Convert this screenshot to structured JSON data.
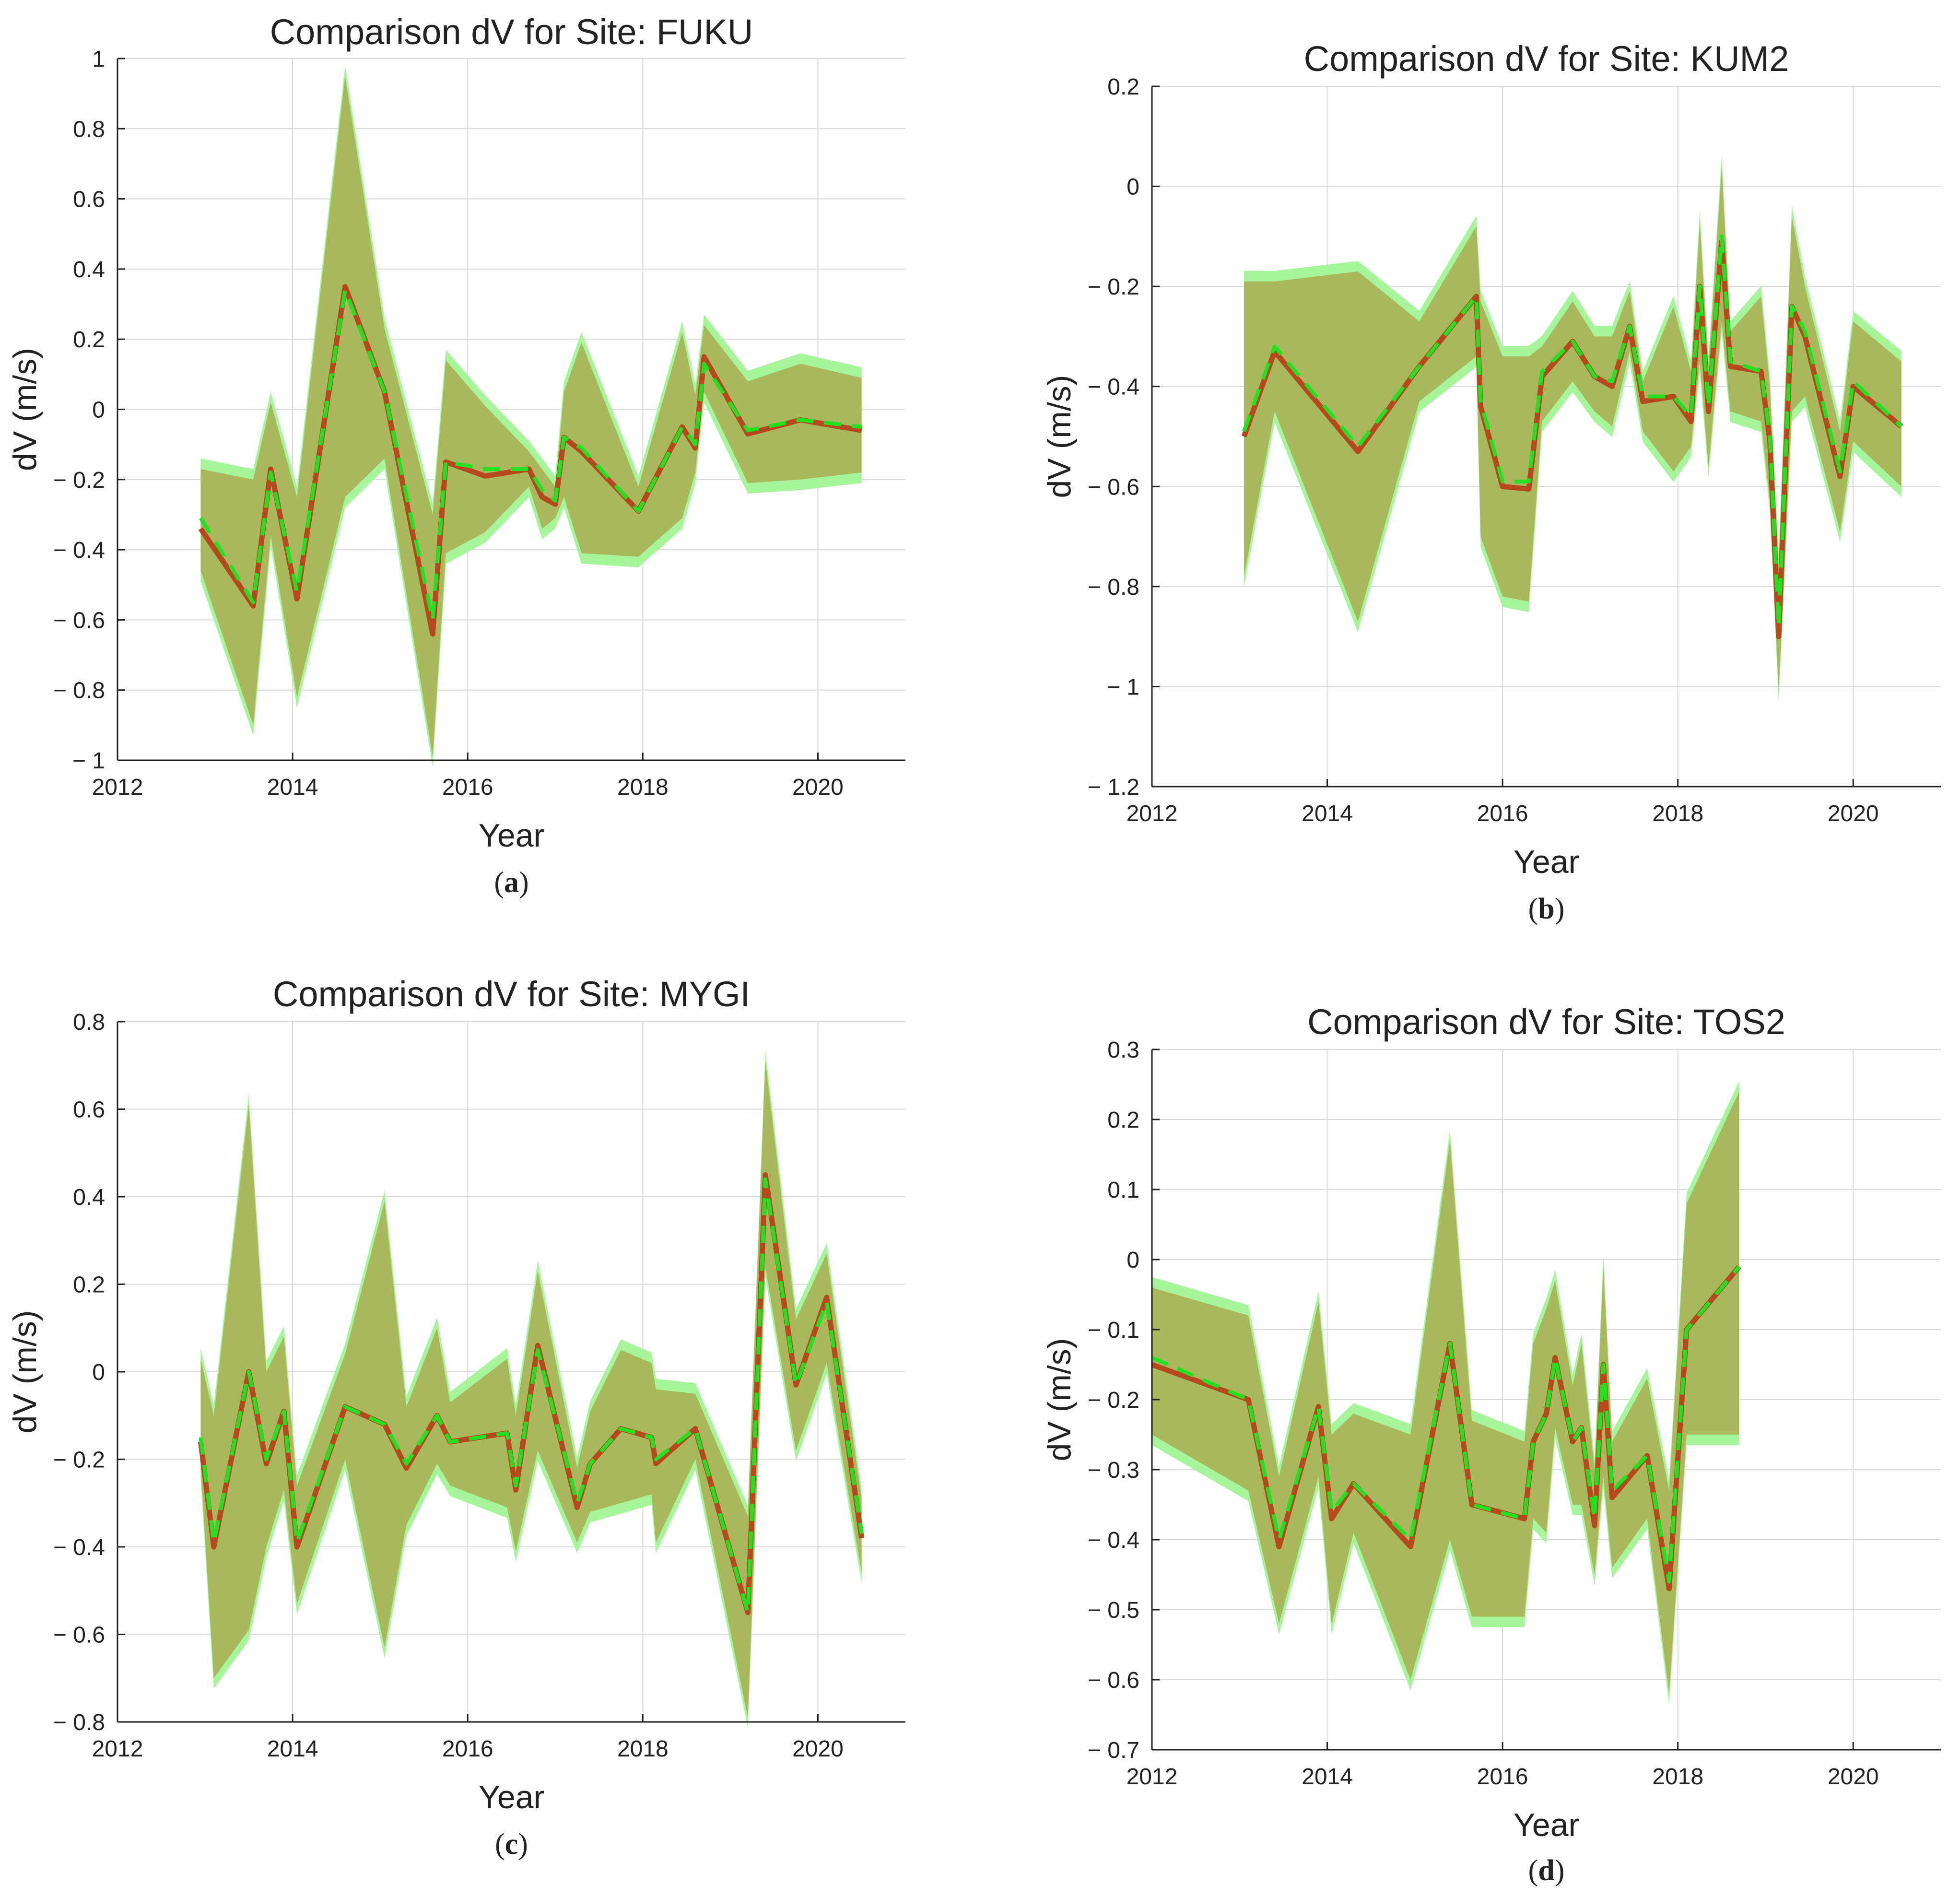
{
  "colors": {
    "band_green": "#a6f59a",
    "band_olive": "#a9b85c",
    "line_solid": "#b5481c",
    "line_dash": "#22e022",
    "grid": "#d9d9d9",
    "axis": "#222222"
  },
  "chart_data": [
    {
      "type": "line",
      "title": "Comparison dV for Site: FUKU",
      "xlabel": "Year",
      "ylabel": "dV (m/s)",
      "panel_label": "a",
      "xlim": [
        2012,
        2021
      ],
      "ylim": [
        -1,
        1
      ],
      "xticks": [
        2012,
        2014,
        2016,
        2018,
        2020
      ],
      "xtick_labels": [
        "2012",
        "2014",
        "2016",
        "2018",
        "2020"
      ],
      "yticks": [
        -1,
        -0.8,
        -0.6,
        -0.4,
        -0.2,
        0,
        0.2,
        0.4,
        0.6,
        0.8,
        1
      ],
      "ytick_labels": [
        "− 1",
        "− 0.8",
        "− 0.6",
        "− 0.4",
        "− 0.2",
        "0",
        "0.2",
        "0.4",
        "0.6",
        "0.8",
        "1"
      ],
      "grid": true,
      "x": [
        2012.95,
        2013.55,
        2013.75,
        2014.05,
        2014.6,
        2015.05,
        2015.6,
        2015.75,
        2016.2,
        2016.7,
        2016.85,
        2017.0,
        2017.1,
        2017.3,
        2017.95,
        2018.45,
        2018.6,
        2018.7,
        2019.2,
        2019.8,
        2020.5
      ],
      "series": [
        {
          "name": "dV (solid)",
          "values": [
            -0.34,
            -0.56,
            -0.17,
            -0.54,
            0.35,
            0.05,
            -0.64,
            -0.15,
            -0.19,
            -0.17,
            -0.25,
            -0.27,
            -0.08,
            -0.12,
            -0.29,
            -0.05,
            -0.11,
            0.15,
            -0.07,
            -0.03,
            -0.06
          ],
          "band_lower": [
            -0.46,
            -0.9,
            -0.36,
            -0.82,
            -0.25,
            -0.14,
            -0.99,
            -0.41,
            -0.35,
            -0.22,
            -0.34,
            -0.31,
            -0.25,
            -0.41,
            -0.42,
            -0.31,
            -0.18,
            0.05,
            -0.21,
            -0.2,
            -0.18
          ],
          "band_upper": [
            -0.17,
            -0.2,
            0.02,
            -0.25,
            0.95,
            0.23,
            -0.3,
            0.14,
            0.01,
            -0.12,
            -0.17,
            -0.22,
            0.05,
            0.19,
            -0.22,
            0.22,
            0.04,
            0.24,
            0.08,
            0.13,
            0.09
          ]
        },
        {
          "name": "dV (dashed)",
          "values": [
            -0.31,
            -0.55,
            -0.18,
            -0.52,
            0.34,
            0.05,
            -0.6,
            -0.15,
            -0.17,
            -0.17,
            -0.23,
            -0.26,
            -0.08,
            -0.11,
            -0.29,
            -0.05,
            -0.1,
            0.13,
            -0.06,
            -0.03,
            -0.05
          ]
        }
      ]
    },
    {
      "type": "line",
      "title": "Comparison dV for Site: KUM2",
      "xlabel": "Year",
      "ylabel": "dV (m/s)",
      "panel_label": "b",
      "xlim": [
        2012,
        2021
      ],
      "ylim": [
        -1.2,
        0.2
      ],
      "xticks": [
        2012,
        2014,
        2016,
        2018,
        2020
      ],
      "xtick_labels": [
        "2012",
        "2014",
        "2016",
        "2018",
        "2020"
      ],
      "yticks": [
        -1.2,
        -1,
        -0.8,
        -0.6,
        -0.4,
        -0.2,
        0,
        0.2
      ],
      "ytick_labels": [
        "− 1.2",
        "− 1",
        "− 0.8",
        "− 0.6",
        "− 0.4",
        "− 0.2",
        "0",
        "0.2"
      ],
      "grid": true,
      "x": [
        2013.05,
        2013.4,
        2014.35,
        2015.05,
        2015.7,
        2015.75,
        2016.0,
        2016.3,
        2016.45,
        2016.8,
        2017.05,
        2017.25,
        2017.45,
        2017.6,
        2017.95,
        2018.15,
        2018.25,
        2018.35,
        2018.5,
        2018.6,
        2018.95,
        2019.05,
        2019.15,
        2019.3,
        2019.45,
        2019.85,
        2020.0,
        2020.55
      ],
      "series": [
        {
          "name": "dV (solid)",
          "values": [
            -0.5,
            -0.33,
            -0.53,
            -0.36,
            -0.22,
            -0.44,
            -0.6,
            -0.605,
            -0.38,
            -0.31,
            -0.38,
            -0.4,
            -0.28,
            -0.43,
            -0.42,
            -0.47,
            -0.2,
            -0.45,
            -0.11,
            -0.36,
            -0.37,
            -0.51,
            -0.9,
            -0.24,
            -0.3,
            -0.58,
            -0.4,
            -0.48
          ],
          "band_lower": [
            -0.78,
            -0.45,
            -0.87,
            -0.43,
            -0.34,
            -0.7,
            -0.82,
            -0.83,
            -0.47,
            -0.39,
            -0.45,
            -0.48,
            -0.33,
            -0.49,
            -0.57,
            -0.52,
            -0.35,
            -0.56,
            -0.27,
            -0.45,
            -0.47,
            -0.63,
            -1.01,
            -0.45,
            -0.42,
            -0.69,
            -0.51,
            -0.6
          ],
          "band_upper": [
            -0.19,
            -0.19,
            -0.17,
            -0.27,
            -0.08,
            -0.23,
            -0.34,
            -0.34,
            -0.32,
            -0.23,
            -0.3,
            -0.3,
            -0.21,
            -0.39,
            -0.24,
            -0.37,
            -0.07,
            -0.36,
            0.04,
            -0.29,
            -0.22,
            -0.4,
            -0.76,
            -0.06,
            -0.2,
            -0.49,
            -0.27,
            -0.35
          ]
        },
        {
          "name": "dV (dashed)",
          "values": [
            -0.49,
            -0.32,
            -0.52,
            -0.36,
            -0.22,
            -0.43,
            -0.59,
            -0.59,
            -0.37,
            -0.31,
            -0.38,
            -0.39,
            -0.28,
            -0.42,
            -0.42,
            -0.46,
            -0.2,
            -0.44,
            -0.1,
            -0.35,
            -0.37,
            -0.5,
            -0.88,
            -0.24,
            -0.29,
            -0.57,
            -0.39,
            -0.48
          ]
        }
      ]
    },
    {
      "type": "line",
      "title": "Comparison dV for Site: MYGI",
      "xlabel": "Year",
      "ylabel": "dV (m/s)",
      "panel_label": "c",
      "xlim": [
        2012,
        2021
      ],
      "ylim": [
        -0.8,
        0.8
      ],
      "xticks": [
        2012,
        2014,
        2016,
        2018,
        2020
      ],
      "xtick_labels": [
        "2012",
        "2014",
        "2016",
        "2018",
        "2020"
      ],
      "yticks": [
        -0.8,
        -0.6,
        -0.4,
        -0.2,
        0,
        0.2,
        0.4,
        0.6,
        0.8
      ],
      "ytick_labels": [
        "− 0.8",
        "− 0.6",
        "− 0.4",
        "− 0.2",
        "0",
        "0.2",
        "0.4",
        "0.6",
        "0.8"
      ],
      "grid": true,
      "x": [
        2012.95,
        2013.1,
        2013.5,
        2013.7,
        2013.9,
        2014.05,
        2014.6,
        2015.05,
        2015.3,
        2015.65,
        2015.8,
        2016.45,
        2016.55,
        2016.8,
        2017.25,
        2017.4,
        2017.75,
        2018.1,
        2018.15,
        2018.6,
        2019.2,
        2019.4,
        2019.75,
        2020.1,
        2020.5
      ],
      "series": [
        {
          "name": "dV (solid)",
          "values": [
            -0.16,
            -0.4,
            0.0,
            -0.21,
            -0.09,
            -0.4,
            -0.08,
            -0.12,
            -0.22,
            -0.1,
            -0.16,
            -0.14,
            -0.27,
            0.06,
            -0.31,
            -0.21,
            -0.13,
            -0.15,
            -0.21,
            -0.13,
            -0.55,
            0.45,
            -0.03,
            0.17,
            -0.38
          ],
          "band_lower": [
            -0.22,
            -0.7,
            -0.59,
            -0.4,
            -0.27,
            -0.53,
            -0.2,
            -0.63,
            -0.35,
            -0.21,
            -0.26,
            -0.31,
            -0.41,
            -0.18,
            -0.39,
            -0.32,
            -0.3,
            -0.28,
            -0.39,
            -0.2,
            -0.79,
            0.24,
            -0.18,
            0.02,
            -0.46
          ],
          "band_upper": [
            0.03,
            -0.1,
            0.61,
            0.0,
            0.08,
            -0.26,
            0.04,
            0.39,
            -0.08,
            0.1,
            -0.07,
            0.03,
            -0.1,
            0.23,
            -0.22,
            -0.09,
            0.05,
            0.02,
            -0.04,
            -0.05,
            -0.33,
            0.71,
            0.12,
            0.27,
            -0.29
          ]
        },
        {
          "name": "dV (dashed)",
          "values": [
            -0.15,
            -0.39,
            0.0,
            -0.2,
            -0.09,
            -0.39,
            -0.08,
            -0.12,
            -0.21,
            -0.1,
            -0.16,
            -0.14,
            -0.26,
            0.05,
            -0.3,
            -0.21,
            -0.13,
            -0.15,
            -0.2,
            -0.13,
            -0.55,
            0.44,
            -0.03,
            0.16,
            -0.37
          ]
        }
      ]
    },
    {
      "type": "line",
      "title": "Comparison dV for Site: TOS2",
      "xlabel": "Year",
      "ylabel": "dV (m/s)",
      "panel_label": "d",
      "xlim": [
        2012,
        2021
      ],
      "ylim": [
        -0.7,
        0.3
      ],
      "xticks": [
        2012,
        2014,
        2016,
        2018,
        2020
      ],
      "xtick_labels": [
        "2012",
        "2014",
        "2016",
        "2018",
        "2020"
      ],
      "yticks": [
        -0.7,
        -0.6,
        -0.5,
        -0.4,
        -0.3,
        -0.2,
        -0.1,
        0,
        0.1,
        0.2,
        0.3
      ],
      "ytick_labels": [
        "− 0.7",
        "− 0.6",
        "− 0.5",
        "− 0.4",
        "− 0.3",
        "− 0.2",
        "− 0.1",
        "0",
        "0.1",
        "0.2",
        "0.3"
      ],
      "grid": true,
      "x": [
        2012.0,
        2013.1,
        2013.45,
        2013.9,
        2014.05,
        2014.3,
        2014.95,
        2015.4,
        2015.65,
        2016.25,
        2016.35,
        2016.5,
        2016.6,
        2016.8,
        2016.9,
        2017.05,
        2017.15,
        2017.25,
        2017.65,
        2017.9,
        2018.1,
        2018.7
      ],
      "series": [
        {
          "name": "dV (solid)",
          "values": [
            -0.15,
            -0.2,
            -0.41,
            -0.21,
            -0.37,
            -0.32,
            -0.41,
            -0.12,
            -0.35,
            -0.37,
            -0.26,
            -0.22,
            -0.14,
            -0.26,
            -0.24,
            -0.38,
            -0.15,
            -0.34,
            -0.28,
            -0.47,
            -0.1,
            -0.01
          ],
          "band_lower": [
            -0.25,
            -0.33,
            -0.52,
            -0.31,
            -0.52,
            -0.39,
            -0.6,
            -0.4,
            -0.51,
            -0.51,
            -0.37,
            -0.39,
            -0.24,
            -0.35,
            -0.35,
            -0.45,
            -0.31,
            -0.44,
            -0.37,
            -0.62,
            -0.25,
            -0.25
          ],
          "band_upper": [
            -0.04,
            -0.08,
            -0.31,
            -0.06,
            -0.25,
            -0.22,
            -0.25,
            0.17,
            -0.23,
            -0.26,
            -0.12,
            -0.07,
            -0.03,
            -0.18,
            -0.12,
            -0.3,
            -0.01,
            -0.26,
            -0.17,
            -0.33,
            0.08,
            0.24
          ]
        },
        {
          "name": "dV (dashed)",
          "values": [
            -0.14,
            -0.2,
            -0.4,
            -0.21,
            -0.36,
            -0.32,
            -0.4,
            -0.12,
            -0.35,
            -0.37,
            -0.26,
            -0.22,
            -0.14,
            -0.26,
            -0.24,
            -0.37,
            -0.15,
            -0.33,
            -0.28,
            -0.46,
            -0.1,
            -0.01
          ]
        }
      ]
    }
  ]
}
